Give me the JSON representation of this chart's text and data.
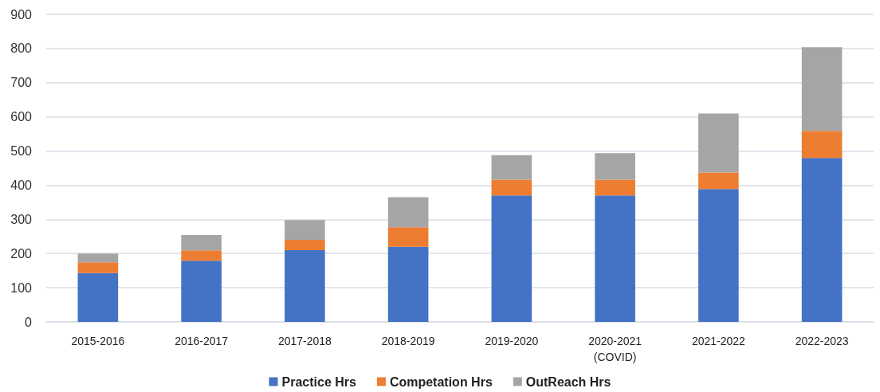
{
  "chart_data": {
    "type": "bar",
    "stacked": true,
    "categories": [
      "2015-2016",
      "2016-2017",
      "2017-2018",
      "2018-2019",
      "2019-2020",
      "2020-2021\n(COVID)",
      "2021-2022",
      "2022-2023"
    ],
    "series": [
      {
        "name": "Practice Hrs",
        "color": "#4472c4",
        "values": [
          143,
          179,
          210,
          220,
          370,
          370,
          389,
          480
        ]
      },
      {
        "name": "Competation Hrs",
        "color": "#ed7d31",
        "values": [
          31,
          30,
          30,
          57,
          46,
          46,
          48,
          79
        ]
      },
      {
        "name": "OutReach Hrs",
        "color": "#a5a5a5",
        "values": [
          26,
          45,
          58,
          88,
          72,
          78,
          173,
          245
        ]
      }
    ],
    "ylim": [
      0,
      900
    ],
    "yticks": [
      0,
      100,
      200,
      300,
      400,
      500,
      600,
      700,
      800,
      900
    ],
    "grid": "y",
    "legend": "bottom"
  }
}
